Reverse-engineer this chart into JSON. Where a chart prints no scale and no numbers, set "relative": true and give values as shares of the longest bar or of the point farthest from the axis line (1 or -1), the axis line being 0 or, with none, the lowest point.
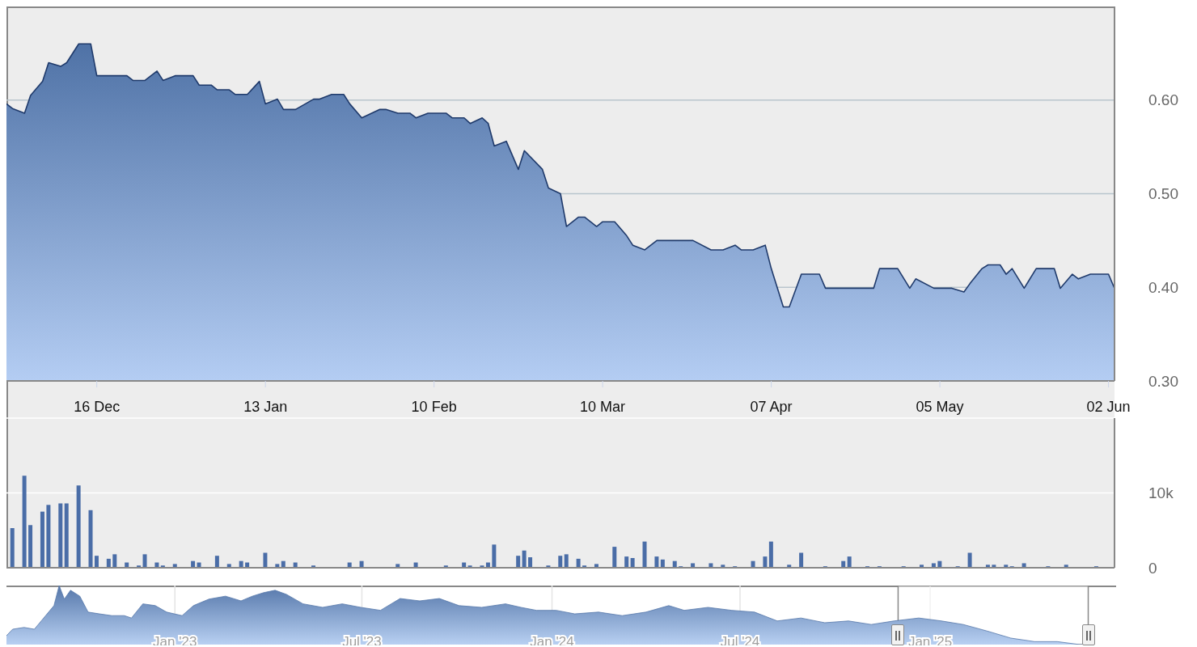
{
  "chart_data": [
    {
      "type": "area",
      "x": [
        "2024-12-01",
        "2024-12-02",
        "2024-12-04",
        "2024-12-05",
        "2024-12-07",
        "2024-12-08",
        "2024-12-10",
        "2024-12-11",
        "2024-12-13",
        "2024-12-15",
        "2024-12-16",
        "2024-12-21",
        "2024-12-22",
        "2024-12-24",
        "2024-12-26",
        "2024-12-27",
        "2024-12-29",
        "2025-01-01",
        "2025-01-02",
        "2025-01-04",
        "2025-01-05",
        "2025-01-07",
        "2025-01-08",
        "2025-01-10",
        "2025-01-12",
        "2025-01-13",
        "2025-01-15",
        "2025-01-16",
        "2025-01-18",
        "2025-01-21",
        "2025-01-22",
        "2025-01-24",
        "2025-01-26",
        "2025-01-27",
        "2025-01-29",
        "2025-02-01",
        "2025-02-02",
        "2025-02-04",
        "2025-02-06",
        "2025-02-07",
        "2025-02-09",
        "2025-02-12",
        "2025-02-13",
        "2025-02-15",
        "2025-02-16",
        "2025-02-18",
        "2025-02-19",
        "2025-02-20",
        "2025-02-22",
        "2025-02-24",
        "2025-02-25",
        "2025-02-28",
        "2025-03-01",
        "2025-03-03",
        "2025-03-04",
        "2025-03-06",
        "2025-03-07",
        "2025-03-09",
        "2025-03-10",
        "2025-03-12",
        "2025-03-14",
        "2025-03-15",
        "2025-03-17",
        "2025-03-19",
        "2025-03-25",
        "2025-03-28",
        "2025-03-30",
        "2025-04-01",
        "2025-04-02",
        "2025-04-04",
        "2025-04-06",
        "2025-04-07",
        "2025-04-09",
        "2025-04-10",
        "2025-04-12",
        "2025-04-15",
        "2025-04-16",
        "2025-04-24",
        "2025-04-25",
        "2025-04-28",
        "2025-04-30",
        "2025-05-01",
        "2025-05-04",
        "2025-05-07",
        "2025-05-09",
        "2025-05-10",
        "2025-05-12",
        "2025-05-13",
        "2025-05-15",
        "2025-05-16",
        "2025-05-17",
        "2025-05-19",
        "2025-05-21",
        "2025-05-24",
        "2025-05-25",
        "2025-05-27",
        "2025-05-28",
        "2025-05-30",
        "2025-06-02",
        "2025-06-03"
      ],
      "series": [
        {
          "color": "#1f3a6b",
          "values": [
            0.596,
            0.591,
            0.586,
            0.605,
            0.62,
            0.64,
            0.636,
            0.64,
            0.66,
            0.66,
            0.626,
            0.626,
            0.621,
            0.621,
            0.631,
            0.621,
            0.626,
            0.626,
            0.616,
            0.616,
            0.611,
            0.611,
            0.606,
            0.606,
            0.62,
            0.596,
            0.601,
            0.59,
            0.59,
            0.601,
            0.601,
            0.606,
            0.606,
            0.596,
            0.581,
            0.59,
            0.59,
            0.586,
            0.586,
            0.581,
            0.586,
            0.586,
            0.581,
            0.581,
            0.575,
            0.581,
            0.575,
            0.551,
            0.556,
            0.526,
            0.546,
            0.526,
            0.506,
            0.5,
            0.465,
            0.475,
            0.475,
            0.465,
            0.47,
            0.47,
            0.455,
            0.445,
            0.44,
            0.45,
            0.45,
            0.44,
            0.44,
            0.445,
            0.44,
            0.44,
            0.445,
            0.42,
            0.379,
            0.379,
            0.414,
            0.414,
            0.399,
            0.399,
            0.42,
            0.42,
            0.399,
            0.409,
            0.399,
            0.399,
            0.395,
            0.404,
            0.42,
            0.424,
            0.424,
            0.414,
            0.42,
            0.399,
            0.42,
            0.42,
            0.399,
            0.414,
            0.409,
            0.414,
            0.414,
            0.399
          ]
        }
      ],
      "xlim": [
        "2024-12-01",
        "2025-06-03"
      ],
      "xticks": [
        {
          "value": "2024-12-16",
          "label": "16 Dec"
        },
        {
          "value": "2025-01-13",
          "label": "13 Jan"
        },
        {
          "value": "2025-02-10",
          "label": "10 Feb"
        },
        {
          "value": "2025-03-10",
          "label": "10 Mar"
        },
        {
          "value": "2025-04-07",
          "label": "07 Apr"
        },
        {
          "value": "2025-05-05",
          "label": "05 May"
        },
        {
          "value": "2025-06-02",
          "label": "02 Jun"
        }
      ],
      "ylim": [
        0.3,
        0.7
      ],
      "yticks": [
        {
          "value": 0.3,
          "label": "0.30"
        },
        {
          "value": 0.4,
          "label": "0.40"
        },
        {
          "value": 0.5,
          "label": "0.50"
        },
        {
          "value": 0.6,
          "label": "0.60"
        }
      ],
      "grid": "y"
    },
    {
      "type": "bar",
      "x": [
        "2024-12-02",
        "2024-12-04",
        "2024-12-05",
        "2024-12-07",
        "2024-12-08",
        "2024-12-10",
        "2024-12-11",
        "2024-12-13",
        "2024-12-15",
        "2024-12-16",
        "2024-12-18",
        "2024-12-19",
        "2024-12-21",
        "2024-12-23",
        "2024-12-24",
        "2024-12-26",
        "2024-12-27",
        "2024-12-29",
        "2025-01-01",
        "2025-01-02",
        "2025-01-05",
        "2025-01-07",
        "2025-01-09",
        "2025-01-10",
        "2025-01-13",
        "2025-01-15",
        "2025-01-16",
        "2025-01-18",
        "2025-01-21",
        "2025-01-27",
        "2025-01-29",
        "2025-02-04",
        "2025-02-07",
        "2025-02-12",
        "2025-02-15",
        "2025-02-16",
        "2025-02-18",
        "2025-02-19",
        "2025-02-20",
        "2025-02-24",
        "2025-02-25",
        "2025-02-26",
        "2025-03-01",
        "2025-03-03",
        "2025-03-04",
        "2025-03-06",
        "2025-03-07",
        "2025-03-09",
        "2025-03-12",
        "2025-03-14",
        "2025-03-15",
        "2025-03-17",
        "2025-03-19",
        "2025-03-20",
        "2025-03-22",
        "2025-03-23",
        "2025-03-25",
        "2025-03-28",
        "2025-03-30",
        "2025-04-01",
        "2025-04-04",
        "2025-04-06",
        "2025-04-07",
        "2025-04-10",
        "2025-04-12",
        "2025-04-16",
        "2025-04-19",
        "2025-04-20",
        "2025-04-23",
        "2025-04-25",
        "2025-04-29",
        "2025-05-02",
        "2025-05-04",
        "2025-05-05",
        "2025-05-08",
        "2025-05-10",
        "2025-05-13",
        "2025-05-14",
        "2025-05-16",
        "2025-05-17",
        "2025-05-19",
        "2025-05-23",
        "2025-05-26",
        "2025-05-31"
      ],
      "series": [
        {
          "color": "#4a6da7",
          "values": [
            5300,
            12300,
            5700,
            7500,
            8400,
            8600,
            8600,
            11000,
            7700,
            1600,
            1200,
            1800,
            700,
            300,
            1800,
            700,
            300,
            500,
            900,
            700,
            1600,
            500,
            900,
            700,
            2000,
            500,
            900,
            700,
            300,
            700,
            900,
            500,
            700,
            300,
            700,
            300,
            300,
            700,
            3100,
            1600,
            2300,
            1400,
            300,
            1600,
            1800,
            1200,
            300,
            500,
            2800,
            1500,
            1300,
            3500,
            1500,
            1100,
            900,
            200,
            600,
            600,
            400,
            200,
            900,
            1500,
            3500,
            400,
            2000,
            200,
            900,
            1500,
            200,
            200,
            200,
            400,
            600,
            900,
            200,
            2000,
            400,
            400,
            400,
            200,
            600,
            200,
            400,
            200
          ]
        }
      ],
      "xlim": [
        "2024-12-01",
        "2025-06-03"
      ],
      "ylim": [
        0,
        20000
      ],
      "yticks": [
        0,
        {
          "value": 10000,
          "label": "10k"
        },
        {
          "value": 20000,
          "label": null
        }
      ],
      "tick_labels": "y",
      "grid": "y"
    },
    {
      "type": "area",
      "relative": true,
      "x": [
        "2022-07-22",
        "2022-07-28",
        "2022-08-08",
        "2022-08-18",
        "2022-08-27",
        "2022-09-06",
        "2022-09-11",
        "2022-09-16",
        "2022-09-22",
        "2022-10-01",
        "2022-10-09",
        "2022-10-20",
        "2022-11-01",
        "2022-11-13",
        "2022-11-20",
        "2022-12-01",
        "2022-12-13",
        "2022-12-24",
        "2023-01-08",
        "2023-01-19",
        "2023-02-03",
        "2023-02-19",
        "2023-03-06",
        "2023-03-17",
        "2023-03-28",
        "2023-04-08",
        "2023-04-19",
        "2023-05-05",
        "2023-05-24",
        "2023-06-12",
        "2023-06-30",
        "2023-07-19",
        "2023-08-07",
        "2023-08-26",
        "2023-09-14",
        "2023-10-03",
        "2023-10-25",
        "2023-11-17",
        "2023-12-02",
        "2023-12-17",
        "2024-01-05",
        "2024-01-23",
        "2024-02-15",
        "2024-03-09",
        "2024-04-01",
        "2024-04-23",
        "2024-05-08",
        "2024-05-31",
        "2024-06-23",
        "2024-07-15",
        "2024-08-06",
        "2024-08-29",
        "2024-09-21",
        "2024-10-14",
        "2024-11-05",
        "2024-11-27",
        "2024-12-21",
        "2025-01-12",
        "2025-02-02",
        "2025-02-25",
        "2025-03-20",
        "2025-04-12",
        "2025-05-04",
        "2025-05-26",
        "2025-06-03"
      ],
      "series": [
        {
          "color": "#5577aa",
          "values": [
            0.15,
            0.26,
            0.29,
            0.26,
            0.45,
            0.66,
            1,
            0.77,
            0.92,
            0.82,
            0.55,
            0.52,
            0.49,
            0.49,
            0.45,
            0.69,
            0.66,
            0.55,
            0.49,
            0.66,
            0.77,
            0.82,
            0.74,
            0.82,
            0.88,
            0.92,
            0.85,
            0.69,
            0.63,
            0.69,
            0.63,
            0.58,
            0.78,
            0.74,
            0.78,
            0.66,
            0.63,
            0.69,
            0.63,
            0.58,
            0.58,
            0.52,
            0.55,
            0.49,
            0.55,
            0.66,
            0.58,
            0.63,
            0.58,
            0.55,
            0.4,
            0.45,
            0.37,
            0.4,
            0.34,
            0.4,
            0.45,
            0.4,
            0.34,
            0.23,
            0.11,
            0.05,
            0.05,
            0,
            0
          ]
        }
      ],
      "xlim": [
        "2022-07-22",
        "2025-06-30"
      ],
      "xticks": [
        {
          "value": "2023-01-01",
          "label": "Jan '23"
        },
        {
          "value": "2023-07-01",
          "label": "Jul '23"
        },
        {
          "value": "2024-01-01",
          "label": "Jan '24"
        },
        {
          "value": "2024-07-01",
          "label": "Jul '24"
        },
        {
          "value": "2025-01-01",
          "label": "Jan '25"
        }
      ],
      "tick_labels": "x",
      "grid": "x",
      "bands": [
        {
          "axis": "x",
          "from": "2024-12-01",
          "to": "2025-06-03",
          "color": "#ffffff"
        }
      ]
    }
  ]
}
